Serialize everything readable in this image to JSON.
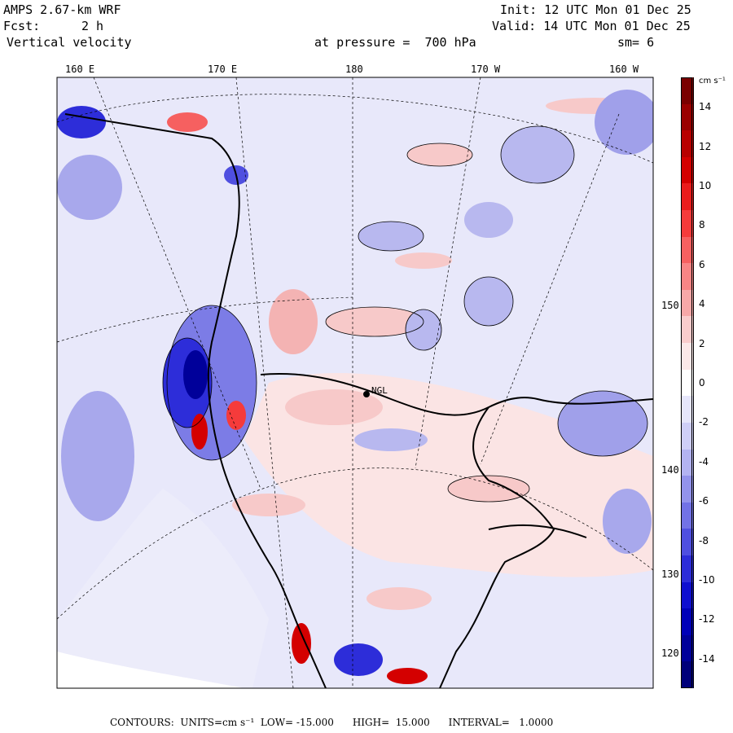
{
  "header": {
    "model": "AMPS 2.67-km WRF",
    "init": "Init: 12 UTC Mon 01 Dec 25",
    "fcst_label": "Fcst:",
    "fcst_value": "2 h",
    "valid": "Valid: 14 UTC Mon 01 Dec 25",
    "field": "Vertical velocity",
    "level": "at pressure =  700 hPa",
    "smoothing": "sm= 6"
  },
  "top_longitudes": [
    "160 E",
    "170 E",
    "180",
    "170 W",
    "160 W"
  ],
  "right_longitudes": [
    "150 W",
    "140 W",
    "130 W",
    "120 W"
  ],
  "stations": [
    "NGL"
  ],
  "colorbar": {
    "units_label": "cm s⁻¹",
    "tick_labels": [
      "14",
      "12",
      "10",
      "8",
      "6",
      "4",
      "2",
      "0",
      "-2",
      "-4",
      "-6",
      "-8",
      "-10",
      "-12",
      "-14"
    ],
    "colors": [
      "#7a0000",
      "#9a0000",
      "#b80000",
      "#d40000",
      "#ea1c1c",
      "#f53b3b",
      "#f66060",
      "#f88585",
      "#f7a8a8",
      "#f9cccc",
      "#fbe8e8",
      "#ffffff",
      "#e6e6fb",
      "#cfcff7",
      "#b3b3f2",
      "#9393ec",
      "#7272e6",
      "#4f4fe0",
      "#2d2dd9",
      "#0f0fd0",
      "#0000b8",
      "#00009a",
      "#00007a"
    ]
  },
  "footer": {
    "contours": "CONTOURS:  UNITS=cm s⁻¹  LOW= -15.000      HIGH=  15.000      INTERVAL=   1.0000"
  }
}
